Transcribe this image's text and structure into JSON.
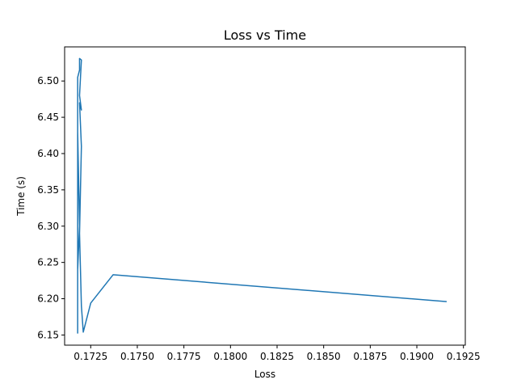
{
  "chart_data": {
    "type": "line",
    "title": "Loss vs Time",
    "xlabel": "Loss",
    "ylabel": "Time (s)",
    "xlim": [
      0.1711,
      0.1926
    ],
    "ylim": [
      6.136,
      6.547
    ],
    "grid": false,
    "color": "#1f77b4",
    "x_ticks": [
      {
        "value": 0.1725,
        "label": "0.1725"
      },
      {
        "value": 0.175,
        "label": "0.1750"
      },
      {
        "value": 0.1775,
        "label": "0.1775"
      },
      {
        "value": 0.18,
        "label": "0.1800"
      },
      {
        "value": 0.1825,
        "label": "0.1825"
      },
      {
        "value": 0.185,
        "label": "0.1850"
      },
      {
        "value": 0.1875,
        "label": "0.1875"
      },
      {
        "value": 0.19,
        "label": "0.1900"
      },
      {
        "value": 0.1925,
        "label": "0.1925"
      }
    ],
    "y_ticks": [
      {
        "value": 6.15,
        "label": "6.15"
      },
      {
        "value": 6.2,
        "label": "6.20"
      },
      {
        "value": 6.25,
        "label": "6.25"
      },
      {
        "value": 6.3,
        "label": "6.30"
      },
      {
        "value": 6.35,
        "label": "6.35"
      },
      {
        "value": 6.4,
        "label": "6.40"
      },
      {
        "value": 6.45,
        "label": "6.45"
      },
      {
        "value": 6.5,
        "label": "6.50"
      }
    ],
    "series": [
      {
        "x": [
          0.1916,
          0.1737,
          0.1725,
          0.1721,
          0.172,
          0.1719,
          0.172,
          0.1719,
          0.172,
          0.1719,
          0.172,
          0.1719,
          0.1719,
          0.1718,
          0.1718,
          0.1719,
          0.1718,
          0.1718,
          0.1718,
          0.1718,
          0.1718,
          0.1718,
          0.1718,
          0.1718,
          0.1718
        ],
        "y": [
          6.196,
          6.233,
          6.194,
          6.154,
          6.19,
          6.29,
          6.41,
          6.47,
          6.46,
          6.48,
          6.529,
          6.531,
          6.515,
          6.505,
          6.43,
          6.3,
          6.24,
          6.187,
          6.278,
          6.35,
          6.448,
          6.465,
          6.4,
          6.25,
          6.152
        ]
      }
    ]
  }
}
